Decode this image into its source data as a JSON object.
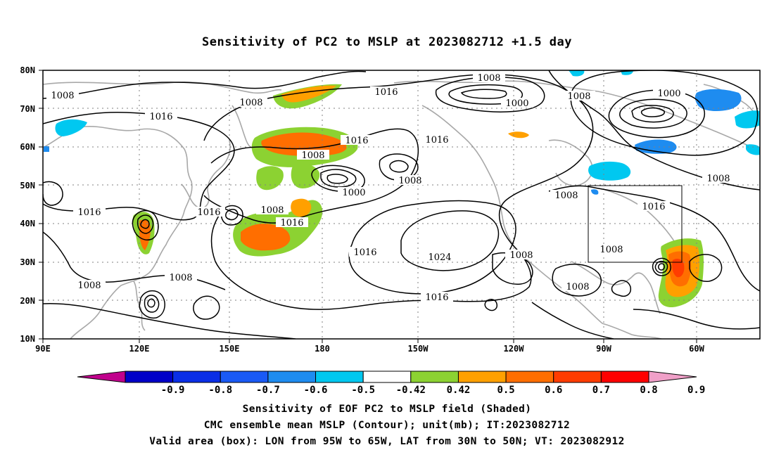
{
  "title": "Sensitivity of PC2 to MSLP at 2023082712 +1.5 day",
  "lat_labels": [
    "80N",
    "70N",
    "60N",
    "50N",
    "40N",
    "30N",
    "20N",
    "10N"
  ],
  "lon_labels": [
    "90E",
    "120E",
    "150E",
    "180",
    "150W",
    "120W",
    "90W",
    "60W"
  ],
  "contours": [
    {
      "label": "1008"
    },
    {
      "label": "1016"
    },
    {
      "label": "1008"
    },
    {
      "label": "1016"
    },
    {
      "label": "1008"
    },
    {
      "label": "1000"
    },
    {
      "label": "1008"
    },
    {
      "label": "1000"
    },
    {
      "label": "1016"
    },
    {
      "label": "1008"
    },
    {
      "label": "1016"
    },
    {
      "label": "1016"
    },
    {
      "label": "1008"
    },
    {
      "label": "1016"
    },
    {
      "label": "1008"
    },
    {
      "label": "1016"
    },
    {
      "label": "1000"
    },
    {
      "label": "1008"
    },
    {
      "label": "1016"
    },
    {
      "label": "1024"
    },
    {
      "label": "1008"
    },
    {
      "label": "1008"
    },
    {
      "label": "1008"
    },
    {
      "label": "1008"
    },
    {
      "label": "1016"
    },
    {
      "label": "1008"
    },
    {
      "label": "1016"
    },
    {
      "label": "1008"
    },
    {
      "label": "1008"
    }
  ],
  "colorbar": {
    "labels": [
      "-0.9",
      "-0.8",
      "-0.7",
      "-0.6",
      "-0.5",
      "-0.42",
      "0.42",
      "0.5",
      "0.6",
      "0.7",
      "0.8",
      "0.9"
    ],
    "colors": [
      "#c0008c",
      "#0000c8",
      "#0a2ee6",
      "#1a5af5",
      "#1e8cf0",
      "#00c8f0",
      "#ffffff",
      "#8cd232",
      "#ffa000",
      "#ff6e00",
      "#ff3c00",
      "#ff0000",
      "#f0a0c8"
    ]
  },
  "caption": [
    "Sensitivity of EOF PC2 to MSLP field (Shaded)",
    "CMC ensemble mean MSLP (Contour); unit(mb); IT:2023082712",
    "Valid area (box): LON from 95W to 65W, LAT from 30N to 50N; VT: 2023082912"
  ]
}
